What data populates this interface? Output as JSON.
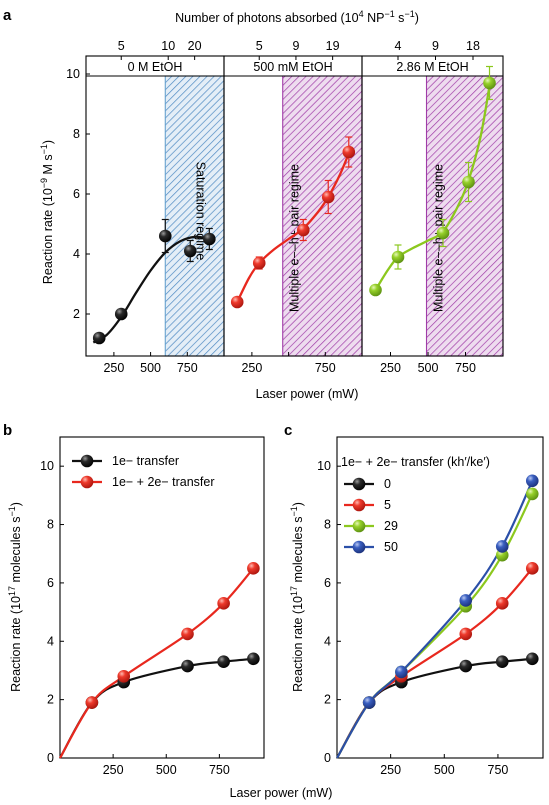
{
  "colors": {
    "black_series": "#111111",
    "red_series": "#e8281e",
    "green_series": "#8cc81e",
    "blue_series": "#2b4fa8",
    "saturation_fill": "#6aa3d0",
    "multiple_fill": "#a03ca8"
  },
  "chart_data": [
    {
      "panel": "a",
      "type": "scatter",
      "top_axis_title_main": "Number of photons absorbed (10",
      "top_axis_title_exp1": "4",
      "top_axis_title_mid": " NP",
      "top_axis_title_exp2": "−1",
      "top_axis_title_end": " s",
      "top_axis_title_exp3": "−1",
      "top_axis_title_close": ")",
      "xlabel": "Laser power (mW)",
      "ylabel_main": "Reaction rate (10",
      "ylabel_exp": "−9",
      "ylabel_unit": " M s",
      "ylabel_exp2": "−1",
      "ylabel_close": ")",
      "ylim": [
        0.6,
        10.6
      ],
      "yticks": [
        2,
        4,
        6,
        8,
        10
      ],
      "segments": [
        {
          "title": "0 M EtOH",
          "xlim": [
            60,
            1000
          ],
          "xticks": [
            250,
            500,
            750
          ],
          "xtick_labels": [
            "250",
            "500",
            "750"
          ],
          "top_ticks": [
            {
              "x": 300,
              "label": "5"
            },
            {
              "x": 620,
              "label": "10"
            },
            {
              "x": 800,
              "label": "20"
            }
          ],
          "color": "#111111",
          "x": [
            150,
            300,
            600,
            770,
            900
          ],
          "y": [
            1.2,
            2.0,
            4.6,
            4.1,
            4.5
          ],
          "yerr": [
            0,
            0,
            0.55,
            0.35,
            0.35
          ],
          "fit": [
            [
              110,
              1.05
            ],
            [
              200,
              1.3
            ],
            [
              300,
              1.9
            ],
            [
              400,
              2.7
            ],
            [
              500,
              3.45
            ],
            [
              600,
              4.05
            ],
            [
              700,
              4.42
            ],
            [
              800,
              4.57
            ],
            [
              870,
              4.53
            ],
            [
              930,
              4.4
            ]
          ],
          "region": {
            "x0": 600,
            "x1": 1000,
            "label": "Saturation regime",
            "fill": "#6aa3d0"
          }
        },
        {
          "title": "500 mM EtOH",
          "xlim": [
            60,
            1000
          ],
          "xticks": [
            250,
            500,
            750
          ],
          "xtick_labels": [
            "250",
            "",
            "750"
          ],
          "top_ticks": [
            {
              "x": 300,
              "label": "5"
            },
            {
              "x": 550,
              "label": "9"
            },
            {
              "x": 800,
              "label": "19"
            }
          ],
          "color": "#e8281e",
          "x": [
            150,
            300,
            600,
            770,
            910
          ],
          "y": [
            2.4,
            3.7,
            4.8,
            5.9,
            7.4
          ],
          "yerr": [
            0,
            0.2,
            0.35,
            0.55,
            0.5
          ],
          "fit": [
            [
              150,
              2.4
            ],
            [
              230,
              3.2
            ],
            [
              300,
              3.7
            ],
            [
              400,
              4.15
            ],
            [
              500,
              4.5
            ],
            [
              600,
              4.85
            ],
            [
              700,
              5.4
            ],
            [
              770,
              5.9
            ],
            [
              850,
              6.65
            ],
            [
              910,
              7.35
            ]
          ],
          "region": {
            "x0": 460,
            "x1": 1000,
            "label": "Multiple e−–h+ pair regime",
            "fill": "#a03ca8"
          }
        },
        {
          "title": "2.86 M EtOH",
          "xlim": [
            60,
            1000
          ],
          "xticks": [
            250,
            500,
            750
          ],
          "xtick_labels": [
            "250",
            "500",
            "750"
          ],
          "top_ticks": [
            {
              "x": 300,
              "label": "4"
            },
            {
              "x": 550,
              "label": "9"
            },
            {
              "x": 800,
              "label": "18"
            }
          ],
          "color": "#8cc81e",
          "x": [
            150,
            300,
            600,
            770,
            910
          ],
          "y": [
            2.8,
            3.9,
            4.7,
            6.4,
            9.7
          ],
          "yerr": [
            0,
            0.4,
            0.45,
            0.65,
            0.55
          ],
          "fit": [
            [
              150,
              2.8
            ],
            [
              230,
              3.45
            ],
            [
              300,
              3.9
            ],
            [
              400,
              4.2
            ],
            [
              500,
              4.45
            ],
            [
              600,
              4.75
            ],
            [
              700,
              5.6
            ],
            [
              770,
              6.45
            ],
            [
              850,
              7.9
            ],
            [
              910,
              9.6
            ]
          ],
          "region": {
            "x0": 490,
            "x1": 1000,
            "label": "Multiple e−–h+ pair regime",
            "fill": "#a03ca8"
          }
        }
      ]
    },
    {
      "panel": "b",
      "type": "line",
      "xlabel": "Laser power (mW)",
      "ylabel_main": "Reaction rate (10",
      "ylabel_exp": "17",
      "ylabel_unit": " molecules s",
      "ylabel_exp2": "−1",
      "ylabel_close": ")",
      "xlim": [
        0,
        960
      ],
      "ylim": [
        0,
        11
      ],
      "xticks": [
        250,
        500,
        750
      ],
      "yticks": [
        0,
        2,
        4,
        6,
        8,
        10
      ],
      "legend_position": "top-left",
      "series": [
        {
          "name": "1e− transfer",
          "color": "#111111",
          "x": [
            0,
            150,
            300,
            600,
            770,
            910
          ],
          "y": [
            0,
            1.9,
            2.6,
            3.15,
            3.3,
            3.4
          ]
        },
        {
          "name": "1e− + 2e− transfer",
          "color": "#e8281e",
          "x": [
            0,
            150,
            300,
            600,
            770,
            910
          ],
          "y": [
            0,
            1.9,
            2.8,
            4.25,
            5.3,
            6.5
          ]
        }
      ]
    },
    {
      "panel": "c",
      "type": "line",
      "xlabel": "",
      "ylabel_main": "Reaction rate (10",
      "ylabel_exp": "17",
      "ylabel_unit": " molecules s",
      "ylabel_exp2": "−1",
      "ylabel_close": ")",
      "xlim": [
        0,
        960
      ],
      "ylim": [
        0,
        11
      ],
      "xticks": [
        250,
        500,
        750
      ],
      "yticks": [
        0,
        2,
        4,
        6,
        8,
        10
      ],
      "legend_title": "1e− + 2e− transfer (kh′/ke′)",
      "legend_position": "top-left",
      "series": [
        {
          "name": "0",
          "color": "#111111",
          "x": [
            0,
            150,
            300,
            600,
            770,
            910
          ],
          "y": [
            0,
            1.9,
            2.6,
            3.15,
            3.3,
            3.4
          ]
        },
        {
          "name": "5",
          "color": "#e8281e",
          "x": [
            0,
            150,
            300,
            600,
            770,
            910
          ],
          "y": [
            0,
            1.9,
            2.8,
            4.25,
            5.3,
            6.5
          ]
        },
        {
          "name": "29",
          "color": "#8cc81e",
          "x": [
            0,
            150,
            300,
            600,
            770,
            910
          ],
          "y": [
            0,
            1.9,
            2.95,
            5.2,
            6.95,
            9.05
          ]
        },
        {
          "name": "50",
          "color": "#2b4fa8",
          "x": [
            0,
            150,
            300,
            600,
            770,
            910
          ],
          "y": [
            0,
            1.9,
            2.95,
            5.4,
            7.25,
            9.5
          ]
        }
      ]
    }
  ],
  "shared_xlabel": "Laser power (mW)"
}
